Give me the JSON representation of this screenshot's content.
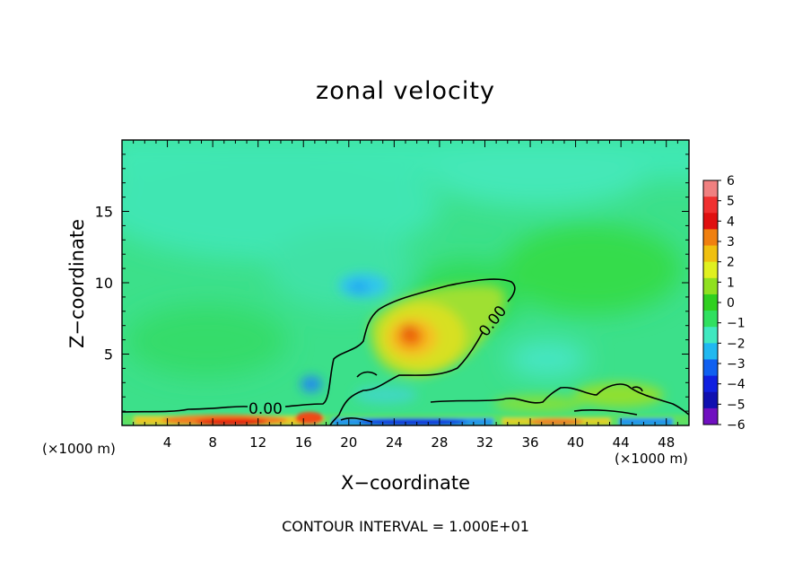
{
  "chart_data": {
    "type": "heatmap",
    "title": "zonal velocity",
    "xlabel": "X−coordinate",
    "ylabel": "Z−coordinate",
    "x_unit_left": "(×1000 m)",
    "x_unit_right": "(×1000 m)",
    "xlim": [
      0,
      50
    ],
    "ylim": [
      0,
      20
    ],
    "x_ticks": [
      4,
      8,
      12,
      16,
      20,
      24,
      28,
      32,
      36,
      40,
      44,
      48
    ],
    "y_ticks": [
      5,
      10,
      15
    ],
    "colorbar": {
      "range": [
        -6,
        6
      ],
      "tick_labels": [
        "6",
        "5",
        "4",
        "3",
        "2",
        "1",
        "0",
        "−1",
        "−2",
        "−3",
        "−4",
        "−5",
        "−6"
      ]
    },
    "contour_labels": [
      "0.00",
      "0.00"
    ],
    "features": [
      {
        "name": "positive core",
        "x": 25.5,
        "z": 6.3,
        "value": 3.5
      },
      {
        "name": "negative eddy",
        "x": 20.5,
        "z": 9.8,
        "value": -2
      },
      {
        "name": "negative eddy",
        "x": 16.5,
        "z": 2.8,
        "value": -3
      },
      {
        "name": "surface negative",
        "x": 26,
        "z": 0.3,
        "value": -4
      },
      {
        "name": "surface positive",
        "x": 10,
        "z": 0.4,
        "value": 4
      },
      {
        "name": "surface positive",
        "x": 16,
        "z": 0.5,
        "value": 4.5
      }
    ],
    "footer": "CONTOUR INTERVAL = 1.000E+01"
  }
}
